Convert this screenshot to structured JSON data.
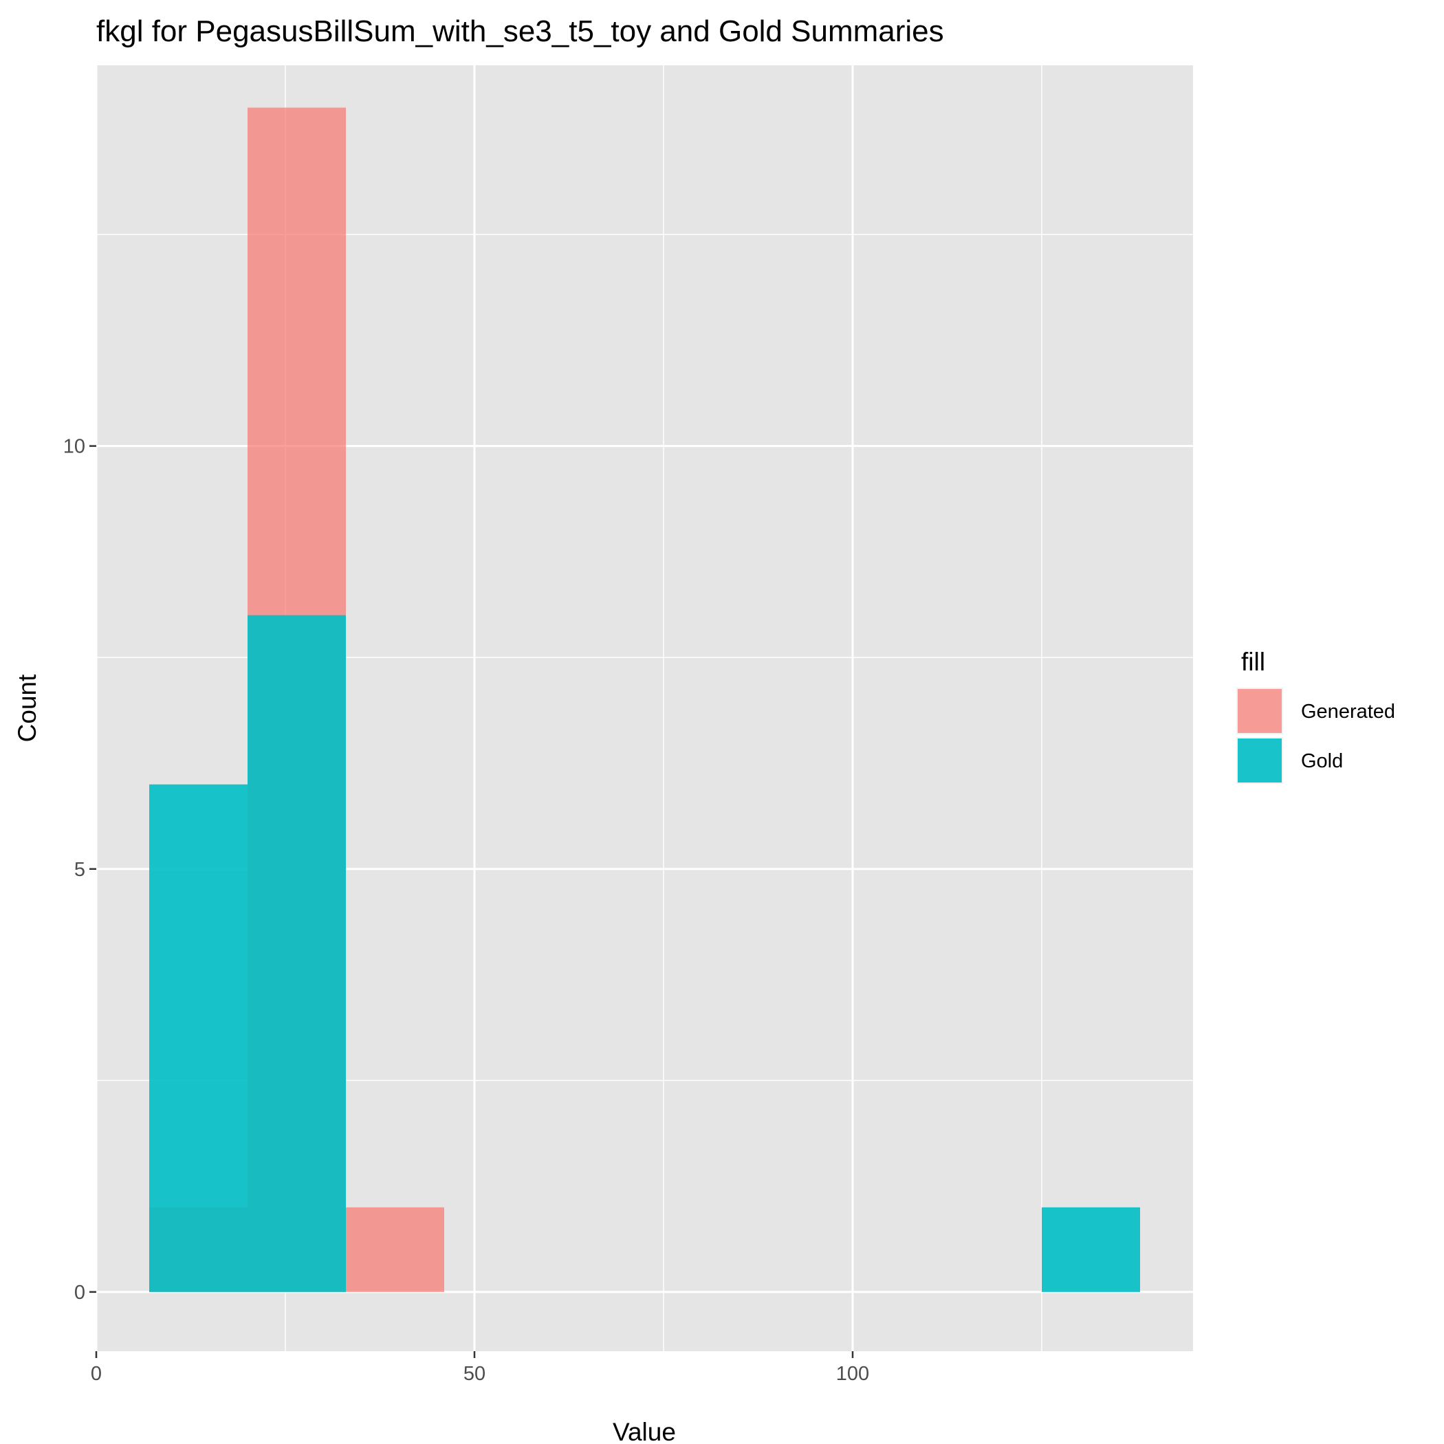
{
  "chart_data": {
    "type": "bar",
    "title": "fkgl for PegasusBillSum_with_se3_t5_toy and Gold Summaries",
    "xlabel": "Value",
    "ylabel": "Count",
    "xlim": [
      0,
      145
    ],
    "ylim": [
      -0.7,
      14.5
    ],
    "x_ticks": [
      0,
      50,
      100
    ],
    "y_ticks": [
      0,
      5,
      10
    ],
    "grid": true,
    "legend": {
      "title": "fill",
      "placement": "right"
    },
    "bins": [
      [
        7,
        20
      ],
      [
        20,
        33
      ],
      [
        33,
        46
      ],
      [
        125,
        138
      ]
    ],
    "series": [
      {
        "name": "Generated",
        "color": "#F8766D",
        "opacity": 0.7,
        "values": [
          1,
          14,
          1,
          0
        ]
      },
      {
        "name": "Gold",
        "color": "#00BFC4",
        "opacity": 0.9,
        "values": [
          6,
          8,
          0,
          1
        ]
      }
    ]
  }
}
